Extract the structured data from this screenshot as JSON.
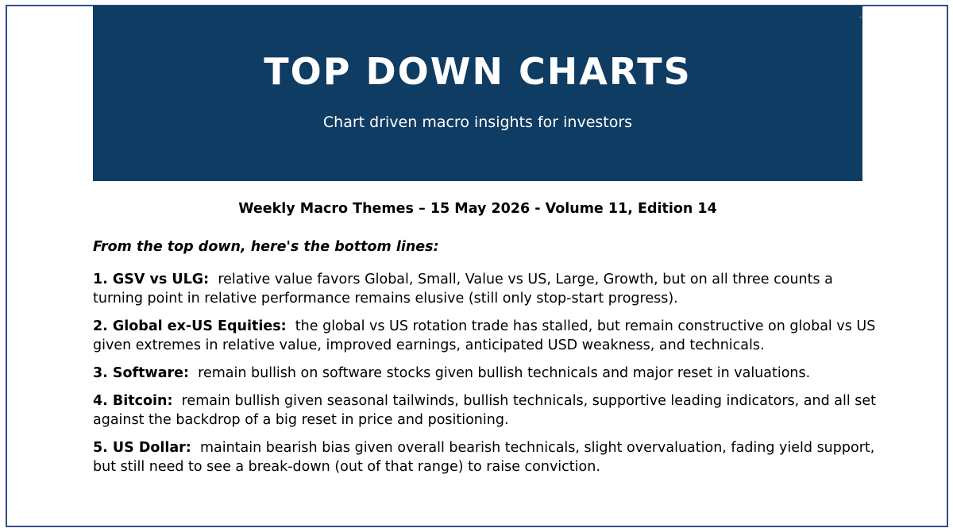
{
  "banner": {
    "title": "TOP DOWN CHARTS",
    "subtitle": "Chart driven macro insights for investors"
  },
  "edition_line": "Weekly Macro Themes – 15 May 2026 - Volume 11, Edition 14",
  "lead": "From the top down, here's the bottom lines:",
  "themes": [
    {
      "label": "1. GSV vs ULG:",
      "text": "relative value favors Global, Small, Value vs US, Large, Growth, but on all three counts a turning point in relative performance remains elusive (still only stop-start progress)."
    },
    {
      "label": "2. Global ex-US Equities:",
      "text": "the global vs US rotation trade has stalled, but remain constructive on global vs US given extremes in relative value, improved earnings, anticipated USD weakness, and technicals."
    },
    {
      "label": "3. Software:",
      "text": "remain bullish on software stocks given bullish technicals and major reset in valuations."
    },
    {
      "label": "4. Bitcoin:",
      "text": "remain bullish given seasonal tailwinds, bullish technicals, supportive leading indicators, and all set against the backdrop of a big reset in price and positioning."
    },
    {
      "label": "5. US Dollar:",
      "text": "maintain bearish bias given overall bearish technicals, slight overvaluation, fading yield support, but still need to see a break-down (out of that range) to raise conviction."
    }
  ],
  "colors": {
    "banner_bg": "#0f3c63",
    "frame_border": "#2f4f86"
  }
}
